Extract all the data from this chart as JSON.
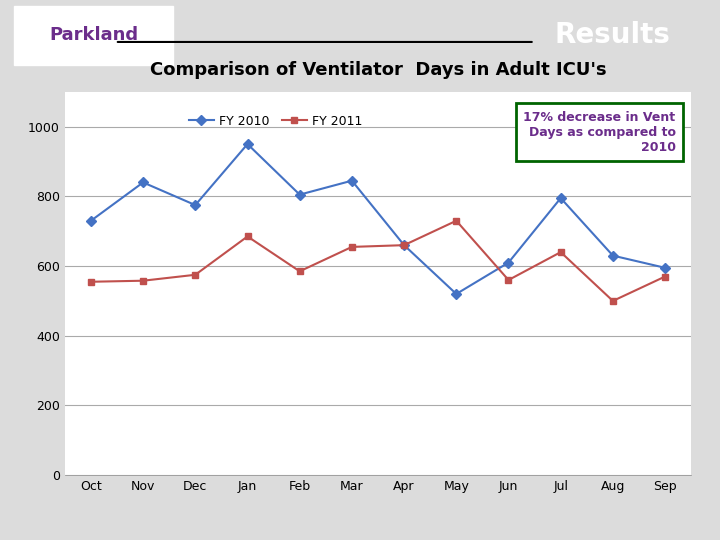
{
  "title": "Comparison of Ventilator  Days in Adult ICU's",
  "header_bg": "#6B2D8B",
  "header_text": "Results",
  "months": [
    "Oct",
    "Nov",
    "Dec",
    "Jan",
    "Feb",
    "Mar",
    "Apr",
    "May",
    "Jun",
    "Jul",
    "Aug",
    "Sep"
  ],
  "fy2010": [
    730,
    840,
    775,
    950,
    805,
    845,
    660,
    520,
    610,
    795,
    630,
    595
  ],
  "fy2011": [
    555,
    558,
    575,
    685,
    585,
    655,
    660,
    730,
    560,
    640,
    500,
    570
  ],
  "fy2010_color": "#4472C4",
  "fy2011_color": "#C0504D",
  "ylim": [
    0,
    1100
  ],
  "yticks": [
    0,
    200,
    400,
    600,
    800,
    1000
  ],
  "annotation_text": "17% decrease in Vent\nDays as compared to\n2010",
  "annotation_box_color": "#006400",
  "annotation_text_color": "#6B2D8B",
  "chart_bg": "#FFFFFF",
  "outer_bg": "#DCDCDC"
}
